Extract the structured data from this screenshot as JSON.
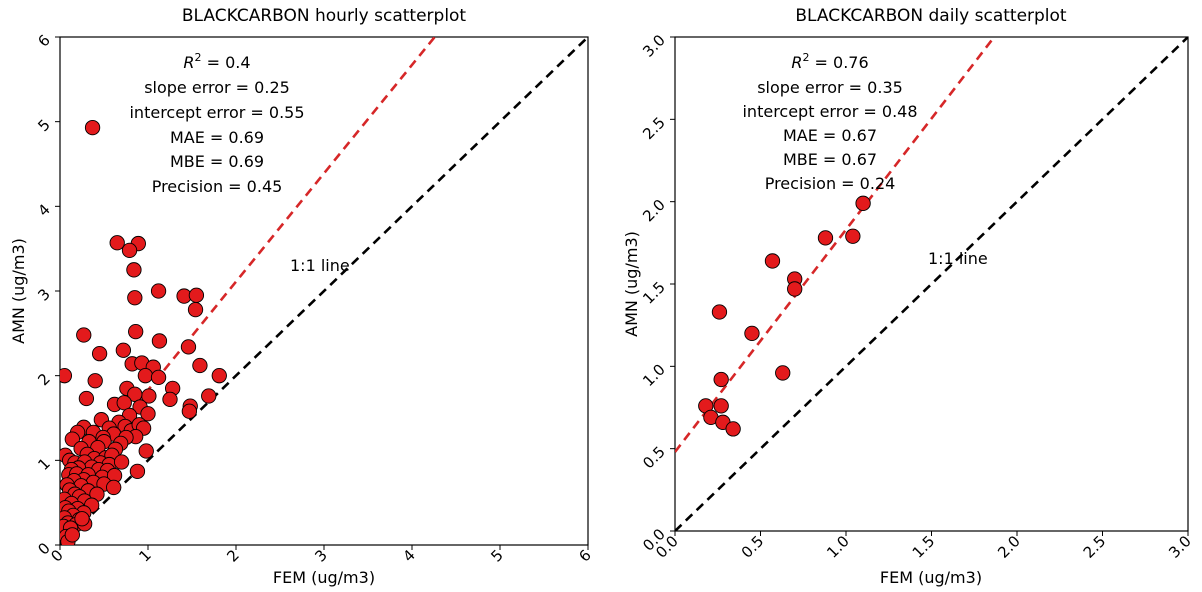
{
  "chart_data": [
    {
      "type": "scatter",
      "title": "BLACKCARBON hourly scatterplot",
      "xlabel": "FEM (ug/m3)",
      "ylabel": "AMN (ug/m3)",
      "xlim": [
        0,
        6
      ],
      "ylim": [
        0,
        6
      ],
      "xticks": [
        "0",
        "1",
        "2",
        "3",
        "4",
        "5",
        "6"
      ],
      "yticks": [
        "0",
        "1",
        "2",
        "3",
        "4",
        "5",
        "6"
      ],
      "stats": {
        "r2_prefix": "R",
        "r2_sup": "2",
        "r2_value": " = 0.4",
        "slope_error": "slope error = 0.25",
        "intercept_error": "intercept error = 0.55",
        "mae": "MAE = 0.69",
        "mbe": "MBE = 0.69",
        "precision": "Precision = 0.45"
      },
      "one_to_one_label": "1:1 line",
      "fit_line": {
        "slope": 1.28,
        "intercept": 0.55,
        "color": "#d62728"
      },
      "identity_line_color": "#000000",
      "marker_color": "#e31a1c",
      "points": [
        [
          0.37,
          4.93
        ],
        [
          0.65,
          3.57
        ],
        [
          0.89,
          3.56
        ],
        [
          0.79,
          3.48
        ],
        [
          0.84,
          3.25
        ],
        [
          1.12,
          3.0
        ],
        [
          0.85,
          2.92
        ],
        [
          1.41,
          2.94
        ],
        [
          1.55,
          2.95
        ],
        [
          1.54,
          2.78
        ],
        [
          0.27,
          2.48
        ],
        [
          0.86,
          2.52
        ],
        [
          1.13,
          2.41
        ],
        [
          1.46,
          2.34
        ],
        [
          0.45,
          2.26
        ],
        [
          0.72,
          2.3
        ],
        [
          0.82,
          2.14
        ],
        [
          0.93,
          2.15
        ],
        [
          1.06,
          2.1
        ],
        [
          1.59,
          2.12
        ],
        [
          0.05,
          2.0
        ],
        [
          0.4,
          1.94
        ],
        [
          0.97,
          2.0
        ],
        [
          1.12,
          1.98
        ],
        [
          1.81,
          2.0
        ],
        [
          1.28,
          1.85
        ],
        [
          1.01,
          1.76
        ],
        [
          1.25,
          1.72
        ],
        [
          1.69,
          1.76
        ],
        [
          0.76,
          1.85
        ],
        [
          0.85,
          1.78
        ],
        [
          0.3,
          1.73
        ],
        [
          0.62,
          1.66
        ],
        [
          0.73,
          1.68
        ],
        [
          1.48,
          1.64
        ],
        [
          1.47,
          1.58
        ],
        [
          0.91,
          1.63
        ],
        [
          1.0,
          1.55
        ],
        [
          0.79,
          1.53
        ],
        [
          0.67,
          1.45
        ],
        [
          0.47,
          1.48
        ],
        [
          0.27,
          1.39
        ],
        [
          0.56,
          1.38
        ],
        [
          0.74,
          1.4
        ],
        [
          0.81,
          1.35
        ],
        [
          0.9,
          1.42
        ],
        [
          0.95,
          1.38
        ],
        [
          0.2,
          1.33
        ],
        [
          0.38,
          1.33
        ],
        [
          0.61,
          1.31
        ],
        [
          0.86,
          1.28
        ],
        [
          0.75,
          1.27
        ],
        [
          0.49,
          1.27
        ],
        [
          0.14,
          1.25
        ],
        [
          0.33,
          1.22
        ],
        [
          0.5,
          1.22
        ],
        [
          0.69,
          1.2
        ],
        [
          0.43,
          1.15
        ],
        [
          0.63,
          1.13
        ],
        [
          0.98,
          1.11
        ],
        [
          0.24,
          1.14
        ],
        [
          0.06,
          1.06
        ],
        [
          0.31,
          1.07
        ],
        [
          0.39,
          1.02
        ],
        [
          0.52,
          1.03
        ],
        [
          0.59,
          1.06
        ],
        [
          0.11,
          1.0
        ],
        [
          0.17,
          0.97
        ],
        [
          0.28,
          0.98
        ],
        [
          0.46,
          0.97
        ],
        [
          0.56,
          0.95
        ],
        [
          0.7,
          0.98
        ],
        [
          0.36,
          0.92
        ],
        [
          0.21,
          0.91
        ],
        [
          0.13,
          0.89
        ],
        [
          0.44,
          0.89
        ],
        [
          0.54,
          0.88
        ],
        [
          0.88,
          0.87
        ],
        [
          0.1,
          0.83
        ],
        [
          0.19,
          0.84
        ],
        [
          0.32,
          0.83
        ],
        [
          0.48,
          0.8
        ],
        [
          0.62,
          0.82
        ],
        [
          0.27,
          0.77
        ],
        [
          0.16,
          0.76
        ],
        [
          0.38,
          0.74
        ],
        [
          0.08,
          0.71
        ],
        [
          0.24,
          0.7
        ],
        [
          0.5,
          0.72
        ],
        [
          0.61,
          0.68
        ],
        [
          0.11,
          0.65
        ],
        [
          0.32,
          0.64
        ],
        [
          0.17,
          0.6
        ],
        [
          0.42,
          0.6
        ],
        [
          0.22,
          0.57
        ],
        [
          0.05,
          0.54
        ],
        [
          0.28,
          0.52
        ],
        [
          0.13,
          0.49
        ],
        [
          0.36,
          0.47
        ],
        [
          0.06,
          0.44
        ],
        [
          0.2,
          0.43
        ],
        [
          0.1,
          0.4
        ],
        [
          0.27,
          0.38
        ],
        [
          0.15,
          0.35
        ],
        [
          0.05,
          0.32
        ],
        [
          0.22,
          0.3
        ],
        [
          0.09,
          0.26
        ],
        [
          0.18,
          0.24
        ],
        [
          0.28,
          0.25
        ],
        [
          0.04,
          0.22
        ],
        [
          0.12,
          0.2
        ],
        [
          0.07,
          0.1
        ],
        [
          0.09,
          0.04
        ],
        [
          0.25,
          0.31
        ],
        [
          0.14,
          0.12
        ]
      ]
    },
    {
      "type": "scatter",
      "title": "BLACKCARBON daily scatterplot",
      "xlabel": "FEM (ug/m3)",
      "ylabel": "AMN (ug/m3)",
      "xlim": [
        0,
        3
      ],
      "ylim": [
        0,
        3
      ],
      "xticks": [
        "0.0",
        "0.5",
        "1.0",
        "1.5",
        "2.0",
        "2.5",
        "3.0"
      ],
      "yticks": [
        "0.0",
        "0.5",
        "1.0",
        "1.5",
        "2.0",
        "2.5",
        "3.0"
      ],
      "stats": {
        "r2_prefix": "R",
        "r2_sup": "2",
        "r2_value": " = 0.76",
        "slope_error": "slope error = 0.35",
        "intercept_error": "intercept error = 0.48",
        "mae": "MAE = 0.67",
        "mbe": "MBE = 0.67",
        "precision": "Precision = 0.24"
      },
      "one_to_one_label": "1:1 line",
      "fit_line": {
        "slope": 1.35,
        "intercept": 0.48,
        "color": "#d62728"
      },
      "identity_line_color": "#000000",
      "marker_color": "#e31a1c",
      "points": [
        [
          1.1,
          1.99
        ],
        [
          0.88,
          1.78
        ],
        [
          1.04,
          1.79
        ],
        [
          0.57,
          1.64
        ],
        [
          0.7,
          1.53
        ],
        [
          0.7,
          1.47
        ],
        [
          0.26,
          1.33
        ],
        [
          0.45,
          1.2
        ],
        [
          0.63,
          0.96
        ],
        [
          0.27,
          0.92
        ],
        [
          0.18,
          0.76
        ],
        [
          0.27,
          0.76
        ],
        [
          0.21,
          0.69
        ],
        [
          0.28,
          0.66
        ],
        [
          0.34,
          0.62
        ]
      ]
    }
  ]
}
